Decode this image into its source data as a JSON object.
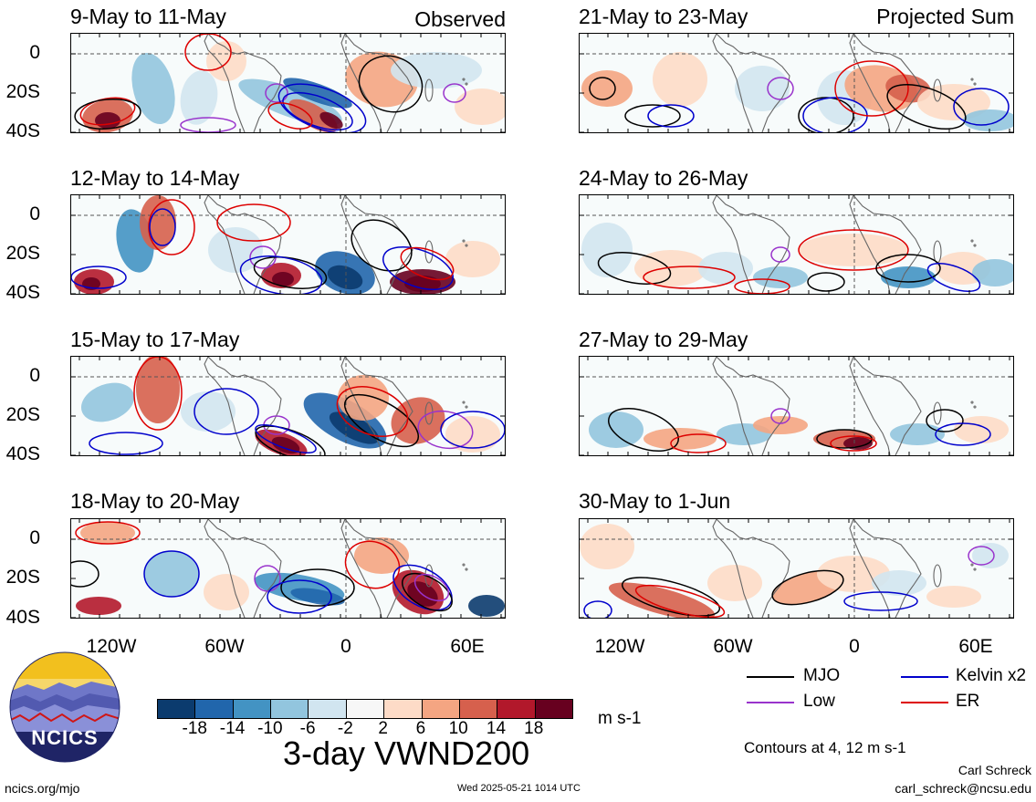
{
  "panels": [
    {
      "title": "9-May to 11-May",
      "corner": "Observed"
    },
    {
      "title": "12-May to 14-May",
      "corner": ""
    },
    {
      "title": "15-May to 17-May",
      "corner": ""
    },
    {
      "title": "18-May to 20-May",
      "corner": ""
    },
    {
      "title": "21-May to 23-May",
      "corner": "Projected Sum"
    },
    {
      "title": "24-May to 26-May",
      "corner": ""
    },
    {
      "title": "27-May to 29-May",
      "corner": ""
    },
    {
      "title": "30-May to 1-Jun",
      "corner": ""
    }
  ],
  "y_ticks": [
    "0",
    "20S",
    "40S"
  ],
  "x_ticks": [
    "120W",
    "60W",
    "0",
    "60E"
  ],
  "colorbar": {
    "labels": [
      "-18",
      "-14",
      "-10",
      "-6",
      "-2",
      "2",
      "6",
      "10",
      "14",
      "18"
    ],
    "colors": [
      "#0b3b6e",
      "#2166ac",
      "#4393c3",
      "#92c5de",
      "#d1e5f0",
      "#f7f7f7",
      "#fddbc7",
      "#f4a582",
      "#d6604d",
      "#b2182b",
      "#67001f"
    ],
    "unit": "m s-1"
  },
  "legend": {
    "items": [
      {
        "label": "MJO",
        "color": "#000000"
      },
      {
        "label": "Kelvin x2",
        "color": "#0000cc"
      },
      {
        "label": "Low",
        "color": "#9933cc"
      },
      {
        "label": "ER",
        "color": "#dd0000"
      }
    ],
    "contours": "Contours at 4, 12 m s-1"
  },
  "main_title": "3-day VWND200",
  "logo_text": "NCICS",
  "footer": {
    "left": "ncics.org/mjo",
    "center": "Wed 2025-05-21 1014 UTC",
    "author": "Carl Schreck",
    "email": "carl_schreck@ncsu.edu"
  }
}
